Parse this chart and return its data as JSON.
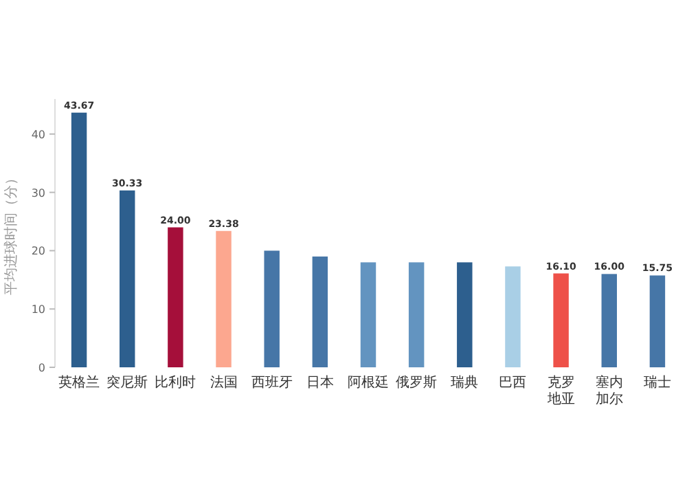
{
  "chart_data": {
    "type": "bar",
    "ylabel": "平均进球时间（分）",
    "categories": [
      "英格兰",
      "突尼斯",
      "比利时",
      "法国",
      "西班牙",
      "日本",
      "阿根廷",
      "俄罗斯",
      "瑞典",
      "巴西",
      "克罗地亚",
      "塞内加尔",
      "瑞士"
    ],
    "values": [
      43.67,
      30.33,
      24.0,
      23.38,
      20,
      19,
      18,
      18,
      18,
      17.3,
      16.1,
      16.0,
      15.75
    ],
    "value_labels": [
      "43.67",
      "30.33",
      "24.00",
      "23.38",
      null,
      null,
      null,
      null,
      null,
      null,
      "16.10",
      "16.00",
      "15.75"
    ],
    "colors": [
      "#2d5f8e",
      "#2d5f8e",
      "#a50f3a",
      "#fca78f",
      "#4676a7",
      "#4676a7",
      "#6394c0",
      "#6394c0",
      "#2d5f8e",
      "#a9cfe6",
      "#ee5149",
      "#4676a7",
      "#4676a7"
    ],
    "ylim": [
      0,
      46
    ],
    "yticks": [
      0,
      10,
      20,
      30,
      40
    ]
  }
}
